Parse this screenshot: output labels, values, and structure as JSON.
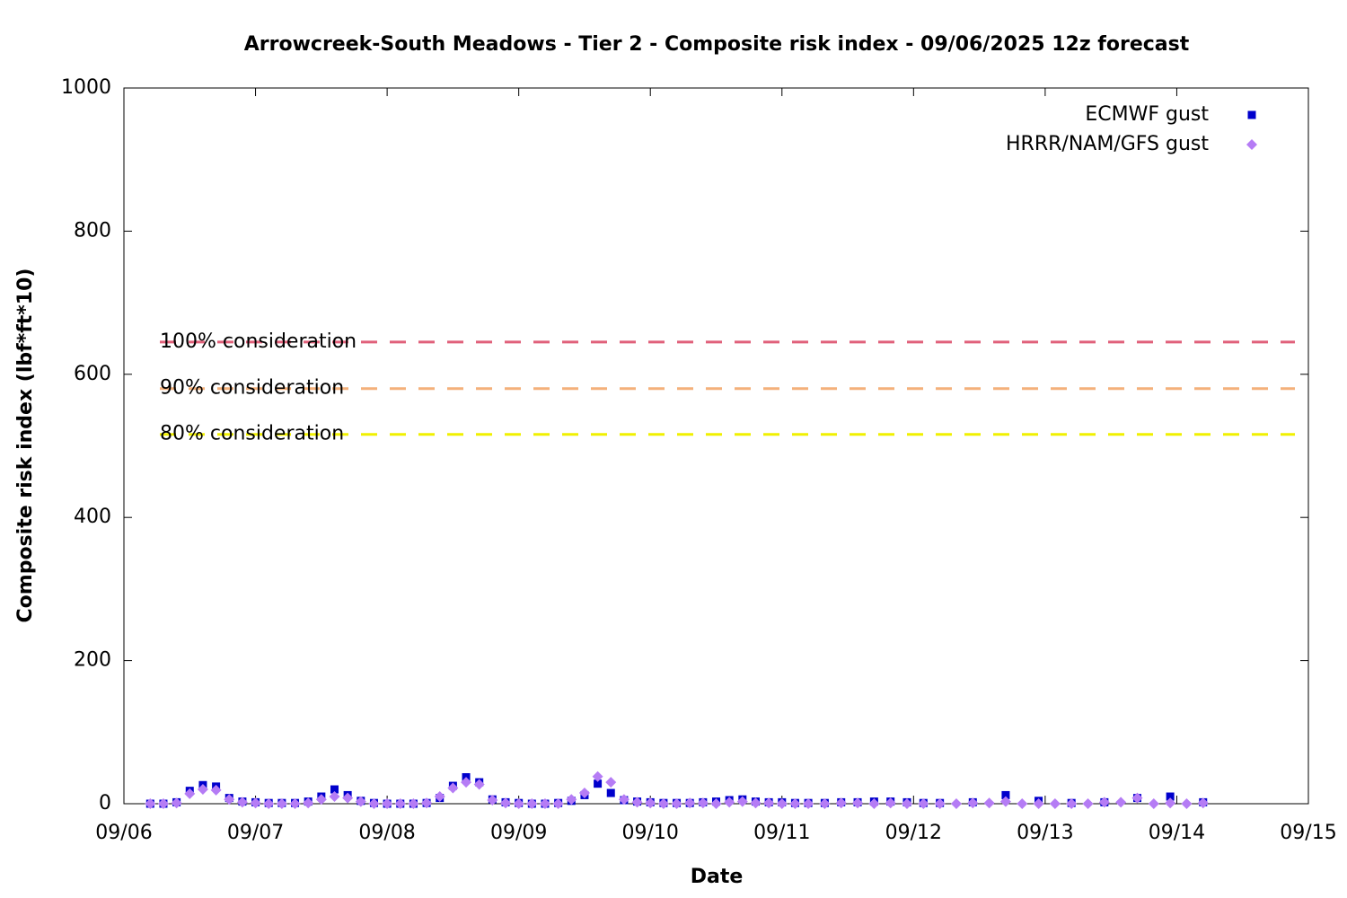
{
  "chart_data": {
    "type": "scatter",
    "title": "Arrowcreek-South Meadows - Tier 2 - Composite risk index - 09/06/2025 12z forecast",
    "xlabel": "Date",
    "ylabel": "Composite risk index (lbf*ft*10)",
    "xlim": [
      6,
      15
    ],
    "xticks": [
      {
        "value": 6,
        "label": "09/06"
      },
      {
        "value": 7,
        "label": "09/07"
      },
      {
        "value": 8,
        "label": "09/08"
      },
      {
        "value": 9,
        "label": "09/09"
      },
      {
        "value": 10,
        "label": "09/10"
      },
      {
        "value": 11,
        "label": "09/11"
      },
      {
        "value": 12,
        "label": "09/12"
      },
      {
        "value": 13,
        "label": "09/13"
      },
      {
        "value": 14,
        "label": "09/14"
      },
      {
        "value": 15,
        "label": "09/15"
      }
    ],
    "ylim": [
      0,
      1000
    ],
    "yticks": [
      0,
      200,
      400,
      600,
      800,
      1000
    ],
    "legend": "top-right",
    "x": [
      6.2,
      6.3,
      6.4,
      6.5,
      6.6,
      6.7,
      6.8,
      6.9,
      7.0,
      7.1,
      7.2,
      7.3,
      7.4,
      7.5,
      7.6,
      7.7,
      7.8,
      7.9,
      8.0,
      8.1,
      8.2,
      8.3,
      8.4,
      8.5,
      8.6,
      8.7,
      8.8,
      8.9,
      9.0,
      9.1,
      9.2,
      9.3,
      9.4,
      9.5,
      9.6,
      9.7,
      9.8,
      9.9,
      10.0,
      10.1,
      10.2,
      10.3,
      10.4,
      10.5,
      10.6,
      10.7,
      10.8,
      10.9,
      11.0,
      11.1,
      11.2,
      11.325,
      11.45,
      11.575,
      11.7,
      11.825,
      11.95,
      12.075,
      12.2,
      12.325,
      12.45,
      12.575,
      12.7,
      12.825,
      12.95,
      13.075,
      13.2,
      13.325,
      13.45,
      13.575,
      13.7,
      13.825,
      13.95,
      14.075,
      14.2
    ],
    "series": [
      {
        "name": "ECMWF gust",
        "color": "#0000cc",
        "marker": "square",
        "values": [
          0,
          0,
          2,
          18,
          26,
          24,
          8,
          3,
          2,
          1,
          1,
          1,
          3,
          10,
          20,
          12,
          4,
          1,
          0,
          0,
          0,
          1,
          8,
          25,
          37,
          30,
          6,
          2,
          1,
          0,
          0,
          1,
          4,
          12,
          28,
          15,
          5,
          3,
          2,
          1,
          1,
          1,
          2,
          3,
          5,
          6,
          3,
          2,
          2,
          1,
          1,
          1,
          2,
          2,
          3,
          3,
          2,
          1,
          1,
          null,
          2,
          null,
          12,
          null,
          4,
          null,
          1,
          null,
          2,
          null,
          8,
          null,
          10,
          null,
          2
        ]
      },
      {
        "name": "HRRR/NAM/GFS gust",
        "color": "#b57cf5",
        "marker": "diamond",
        "values": [
          0,
          0,
          1,
          14,
          20,
          19,
          6,
          2,
          1,
          0,
          0,
          0,
          1,
          6,
          10,
          8,
          3,
          0,
          0,
          0,
          0,
          1,
          10,
          22,
          30,
          27,
          5,
          1,
          0,
          0,
          0,
          0,
          6,
          15,
          38,
          30,
          6,
          2,
          1,
          0,
          0,
          1,
          1,
          0,
          2,
          3,
          1,
          1,
          0,
          0,
          0,
          0,
          1,
          1,
          0,
          1,
          0,
          0,
          0,
          0,
          1,
          1,
          3,
          0,
          0,
          0,
          0,
          0,
          2,
          2,
          8,
          0,
          1,
          0,
          1
        ]
      }
    ],
    "thresholds": [
      {
        "label": "100% consideration",
        "value": 645,
        "color": "#e0607a"
      },
      {
        "label": "90% consideration",
        "value": 580,
        "color": "#f4b07a"
      },
      {
        "label": "80% consideration",
        "value": 516,
        "color": "#f0f000"
      }
    ]
  }
}
